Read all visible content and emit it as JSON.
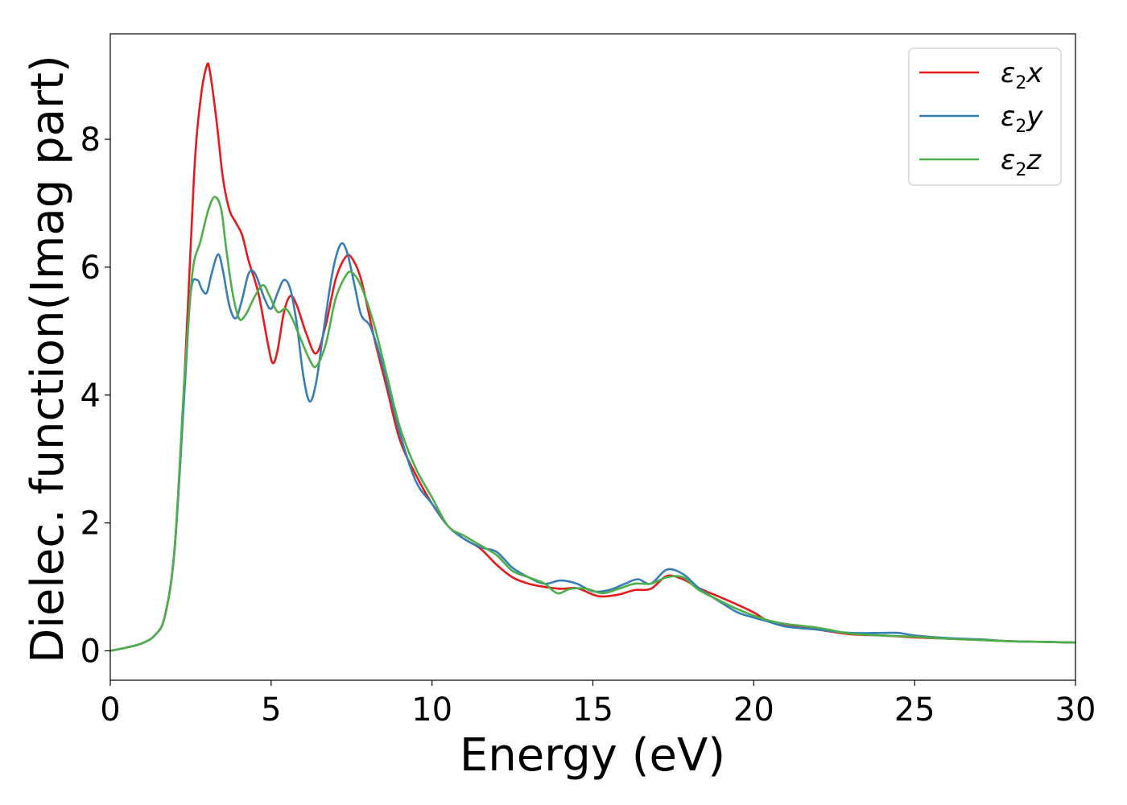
{
  "chart_data": {
    "type": "line",
    "title": "",
    "xlabel": "Energy (eV)",
    "ylabel": "Dielec. function(Imag part)",
    "xlim": [
      0,
      30
    ],
    "ylim": [
      -0.46,
      9.65
    ],
    "xticks": [
      0,
      5,
      10,
      15,
      20,
      25,
      30
    ],
    "yticks": [
      0,
      2,
      4,
      6,
      8
    ],
    "grid": false,
    "legend_position": "top-right",
    "series": [
      {
        "name": "ε2x",
        "legend_base": "ε",
        "legend_sub": "2",
        "legend_var": "x",
        "color": "#e41a1c",
        "points": [
          [
            0,
            0
          ],
          [
            0.5,
            0.05
          ],
          [
            1,
            0.12
          ],
          [
            1.4,
            0.25
          ],
          [
            1.7,
            0.55
          ],
          [
            2,
            1.6
          ],
          [
            2.3,
            4.2
          ],
          [
            2.6,
            7.4
          ],
          [
            2.8,
            8.6
          ],
          [
            3.0,
            9.15
          ],
          [
            3.1,
            9.05
          ],
          [
            3.3,
            8.3
          ],
          [
            3.5,
            7.4
          ],
          [
            3.7,
            6.9
          ],
          [
            3.9,
            6.7
          ],
          [
            4.1,
            6.5
          ],
          [
            4.3,
            6.1
          ],
          [
            4.6,
            5.6
          ],
          [
            4.9,
            4.8
          ],
          [
            5.05,
            4.5
          ],
          [
            5.2,
            4.7
          ],
          [
            5.4,
            5.3
          ],
          [
            5.6,
            5.55
          ],
          [
            5.8,
            5.4
          ],
          [
            6.1,
            4.95
          ],
          [
            6.4,
            4.65
          ],
          [
            6.7,
            5.1
          ],
          [
            7.0,
            5.8
          ],
          [
            7.3,
            6.15
          ],
          [
            7.5,
            6.15
          ],
          [
            7.8,
            5.8
          ],
          [
            8.2,
            4.9
          ],
          [
            8.6,
            4.1
          ],
          [
            9.0,
            3.3
          ],
          [
            9.5,
            2.75
          ],
          [
            10,
            2.3
          ],
          [
            10.5,
            1.95
          ],
          [
            11,
            1.75
          ],
          [
            11.5,
            1.6
          ],
          [
            12,
            1.35
          ],
          [
            12.5,
            1.15
          ],
          [
            13,
            1.05
          ],
          [
            13.5,
            1.0
          ],
          [
            14,
            0.97
          ],
          [
            14.5,
            0.98
          ],
          [
            15,
            0.88
          ],
          [
            15.3,
            0.85
          ],
          [
            15.8,
            0.88
          ],
          [
            16.3,
            0.95
          ],
          [
            16.8,
            0.97
          ],
          [
            17.3,
            1.17
          ],
          [
            17.8,
            1.12
          ],
          [
            18.3,
            0.98
          ],
          [
            19,
            0.83
          ],
          [
            19.5,
            0.72
          ],
          [
            20,
            0.6
          ],
          [
            20.5,
            0.45
          ],
          [
            21,
            0.4
          ],
          [
            22,
            0.33
          ],
          [
            23,
            0.26
          ],
          [
            24,
            0.24
          ],
          [
            25,
            0.21
          ],
          [
            26,
            0.19
          ],
          [
            27,
            0.17
          ],
          [
            28,
            0.15
          ],
          [
            29,
            0.14
          ],
          [
            30,
            0.13
          ]
        ]
      },
      {
        "name": "ε2y",
        "legend_base": "ε",
        "legend_sub": "2",
        "legend_var": "y",
        "color": "#377eb8",
        "points": [
          [
            0,
            0
          ],
          [
            0.5,
            0.05
          ],
          [
            1,
            0.12
          ],
          [
            1.4,
            0.25
          ],
          [
            1.7,
            0.55
          ],
          [
            2,
            1.6
          ],
          [
            2.3,
            4.0
          ],
          [
            2.5,
            5.6
          ],
          [
            2.7,
            5.8
          ],
          [
            2.85,
            5.65
          ],
          [
            3.0,
            5.6
          ],
          [
            3.15,
            5.9
          ],
          [
            3.35,
            6.2
          ],
          [
            3.5,
            5.95
          ],
          [
            3.7,
            5.4
          ],
          [
            3.9,
            5.2
          ],
          [
            4.1,
            5.5
          ],
          [
            4.3,
            5.9
          ],
          [
            4.5,
            5.9
          ],
          [
            4.8,
            5.5
          ],
          [
            5.0,
            5.35
          ],
          [
            5.2,
            5.6
          ],
          [
            5.4,
            5.8
          ],
          [
            5.6,
            5.65
          ],
          [
            5.8,
            5.1
          ],
          [
            6.0,
            4.3
          ],
          [
            6.2,
            3.9
          ],
          [
            6.4,
            4.2
          ],
          [
            6.6,
            4.9
          ],
          [
            6.9,
            5.9
          ],
          [
            7.15,
            6.35
          ],
          [
            7.35,
            6.25
          ],
          [
            7.6,
            5.7
          ],
          [
            7.8,
            5.25
          ],
          [
            8.1,
            5.05
          ],
          [
            8.5,
            4.4
          ],
          [
            9.0,
            3.4
          ],
          [
            9.5,
            2.65
          ],
          [
            10,
            2.3
          ],
          [
            10.5,
            1.95
          ],
          [
            11,
            1.75
          ],
          [
            11.5,
            1.62
          ],
          [
            12,
            1.55
          ],
          [
            12.5,
            1.3
          ],
          [
            13,
            1.15
          ],
          [
            13.5,
            1.05
          ],
          [
            14,
            1.1
          ],
          [
            14.5,
            1.05
          ],
          [
            15,
            0.93
          ],
          [
            15.5,
            0.95
          ],
          [
            16,
            1.05
          ],
          [
            16.4,
            1.12
          ],
          [
            16.8,
            1.05
          ],
          [
            17.3,
            1.27
          ],
          [
            17.8,
            1.2
          ],
          [
            18.3,
            0.98
          ],
          [
            19,
            0.75
          ],
          [
            19.5,
            0.6
          ],
          [
            20,
            0.52
          ],
          [
            20.5,
            0.45
          ],
          [
            21,
            0.38
          ],
          [
            22,
            0.33
          ],
          [
            23,
            0.28
          ],
          [
            24,
            0.28
          ],
          [
            24.5,
            0.28
          ],
          [
            25,
            0.24
          ],
          [
            26,
            0.2
          ],
          [
            27,
            0.18
          ],
          [
            28,
            0.15
          ],
          [
            29,
            0.14
          ],
          [
            30,
            0.13
          ]
        ]
      },
      {
        "name": "ε2z",
        "legend_base": "ε",
        "legend_sub": "2",
        "legend_var": "z",
        "color": "#4daf4a",
        "points": [
          [
            0,
            0
          ],
          [
            0.5,
            0.05
          ],
          [
            1,
            0.12
          ],
          [
            1.4,
            0.25
          ],
          [
            1.7,
            0.55
          ],
          [
            2,
            1.6
          ],
          [
            2.3,
            4.2
          ],
          [
            2.55,
            5.9
          ],
          [
            2.8,
            6.4
          ],
          [
            3.05,
            6.9
          ],
          [
            3.25,
            7.1
          ],
          [
            3.45,
            6.9
          ],
          [
            3.6,
            6.3
          ],
          [
            3.8,
            5.6
          ],
          [
            4.0,
            5.2
          ],
          [
            4.2,
            5.25
          ],
          [
            4.5,
            5.55
          ],
          [
            4.75,
            5.72
          ],
          [
            4.95,
            5.55
          ],
          [
            5.2,
            5.3
          ],
          [
            5.45,
            5.35
          ],
          [
            5.65,
            5.2
          ],
          [
            5.9,
            4.9
          ],
          [
            6.2,
            4.55
          ],
          [
            6.4,
            4.45
          ],
          [
            6.7,
            4.8
          ],
          [
            7.0,
            5.5
          ],
          [
            7.3,
            5.85
          ],
          [
            7.5,
            5.92
          ],
          [
            7.8,
            5.7
          ],
          [
            8.2,
            5.1
          ],
          [
            8.6,
            4.3
          ],
          [
            9.0,
            3.5
          ],
          [
            9.5,
            2.85
          ],
          [
            10,
            2.4
          ],
          [
            10.5,
            1.95
          ],
          [
            11,
            1.8
          ],
          [
            11.5,
            1.65
          ],
          [
            12,
            1.5
          ],
          [
            12.5,
            1.25
          ],
          [
            13,
            1.15
          ],
          [
            13.5,
            1.05
          ],
          [
            13.9,
            0.9
          ],
          [
            14.3,
            0.97
          ],
          [
            14.8,
            0.97
          ],
          [
            15.3,
            0.9
          ],
          [
            15.8,
            0.97
          ],
          [
            16.3,
            1.05
          ],
          [
            16.8,
            1.05
          ],
          [
            17.3,
            1.15
          ],
          [
            17.8,
            1.15
          ],
          [
            18.3,
            0.95
          ],
          [
            19,
            0.77
          ],
          [
            19.5,
            0.65
          ],
          [
            20,
            0.55
          ],
          [
            20.5,
            0.47
          ],
          [
            21,
            0.42
          ],
          [
            22,
            0.36
          ],
          [
            23,
            0.27
          ],
          [
            24,
            0.24
          ],
          [
            25,
            0.22
          ],
          [
            26,
            0.19
          ],
          [
            27,
            0.17
          ],
          [
            28,
            0.15
          ],
          [
            29,
            0.14
          ],
          [
            30,
            0.13
          ]
        ]
      }
    ]
  }
}
